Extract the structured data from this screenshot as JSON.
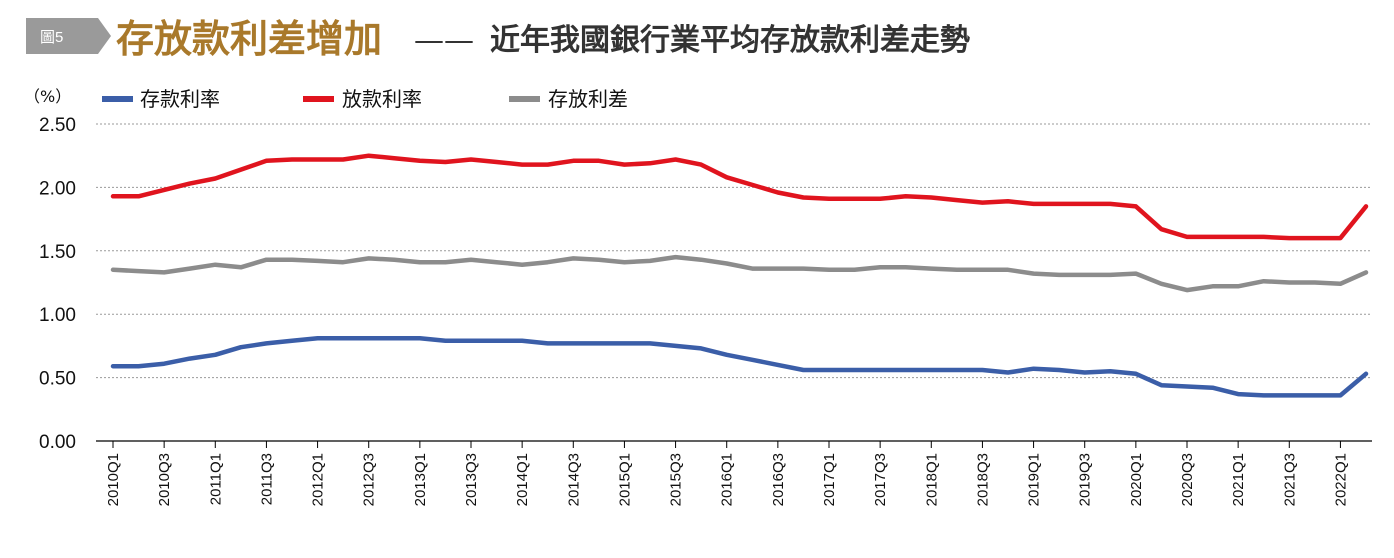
{
  "figure_label": "圖5",
  "title_main": "存放款利差增加",
  "title_dash": "——",
  "title_sub": "近年我國銀行業平均存放款利差走勢",
  "chart_data": {
    "type": "line",
    "ylabel": "（%）",
    "ylim": [
      0,
      2.5
    ],
    "yticks": [
      "0.00",
      "0.50",
      "1.00",
      "1.50",
      "2.00",
      "2.50"
    ],
    "ytick_values": [
      0,
      0.5,
      1.0,
      1.5,
      2.0,
      2.5
    ],
    "grid": true,
    "legend_position": "top-left",
    "x": [
      "2010Q1",
      "2010Q2",
      "2010Q3",
      "2010Q4",
      "2011Q1",
      "2011Q2",
      "2011Q3",
      "2011Q4",
      "2012Q1",
      "2012Q2",
      "2012Q3",
      "2012Q4",
      "2013Q1",
      "2013Q2",
      "2013Q3",
      "2013Q4",
      "2014Q1",
      "2014Q2",
      "2014Q3",
      "2014Q4",
      "2015Q1",
      "2015Q2",
      "2015Q3",
      "2015Q4",
      "2016Q1",
      "2016Q2",
      "2016Q3",
      "2016Q4",
      "2017Q1",
      "2017Q2",
      "2017Q3",
      "2017Q4",
      "2018Q1",
      "2018Q2",
      "2018Q3",
      "2018Q4",
      "2019Q1",
      "2019Q2",
      "2019Q3",
      "2019Q4",
      "2020Q1",
      "2020Q2",
      "2020Q3",
      "2020Q4",
      "2021Q1",
      "2021Q2",
      "2021Q3",
      "2021Q4",
      "2022Q1",
      "2022Q2"
    ],
    "x_tick_labels": [
      "2010Q1",
      "2010Q3",
      "2011Q1",
      "2011Q3",
      "2012Q1",
      "2012Q3",
      "2013Q1",
      "2013Q3",
      "2014Q1",
      "2014Q3",
      "2015Q1",
      "2015Q3",
      "2016Q1",
      "2016Q3",
      "2017Q1",
      "2017Q3",
      "2018Q1",
      "2018Q3",
      "2019Q1",
      "2019Q3",
      "2020Q1",
      "2020Q3",
      "2021Q1",
      "2021Q3",
      "2022Q1"
    ],
    "series": [
      {
        "name": "存款利率",
        "color": "#3b5ea8",
        "values": [
          0.59,
          0.59,
          0.61,
          0.65,
          0.68,
          0.74,
          0.77,
          0.79,
          0.81,
          0.81,
          0.81,
          0.81,
          0.81,
          0.79,
          0.79,
          0.79,
          0.79,
          0.77,
          0.77,
          0.77,
          0.77,
          0.77,
          0.75,
          0.73,
          0.68,
          0.64,
          0.6,
          0.56,
          0.56,
          0.56,
          0.56,
          0.56,
          0.56,
          0.56,
          0.56,
          0.54,
          0.57,
          0.56,
          0.54,
          0.55,
          0.53,
          0.44,
          0.43,
          0.42,
          0.37,
          0.36,
          0.36,
          0.36,
          0.36,
          0.53
        ]
      },
      {
        "name": "放款利率",
        "color": "#e0141e",
        "values": [
          1.93,
          1.93,
          1.98,
          2.03,
          2.07,
          2.14,
          2.21,
          2.22,
          2.22,
          2.22,
          2.25,
          2.23,
          2.21,
          2.2,
          2.22,
          2.2,
          2.18,
          2.18,
          2.21,
          2.21,
          2.18,
          2.19,
          2.22,
          2.18,
          2.08,
          2.02,
          1.96,
          1.92,
          1.91,
          1.91,
          1.91,
          1.93,
          1.92,
          1.9,
          1.88,
          1.89,
          1.87,
          1.87,
          1.87,
          1.87,
          1.85,
          1.67,
          1.61,
          1.61,
          1.61,
          1.61,
          1.6,
          1.6,
          1.6,
          1.85
        ]
      },
      {
        "name": "存放利差",
        "color": "#8c8c8c",
        "values": [
          1.35,
          1.34,
          1.33,
          1.36,
          1.39,
          1.37,
          1.43,
          1.43,
          1.42,
          1.41,
          1.44,
          1.43,
          1.41,
          1.41,
          1.43,
          1.41,
          1.39,
          1.41,
          1.44,
          1.43,
          1.41,
          1.42,
          1.45,
          1.43,
          1.4,
          1.36,
          1.36,
          1.36,
          1.35,
          1.35,
          1.37,
          1.37,
          1.36,
          1.35,
          1.35,
          1.35,
          1.32,
          1.31,
          1.31,
          1.31,
          1.32,
          1.24,
          1.19,
          1.22,
          1.22,
          1.26,
          1.25,
          1.25,
          1.24,
          1.33
        ]
      }
    ]
  }
}
